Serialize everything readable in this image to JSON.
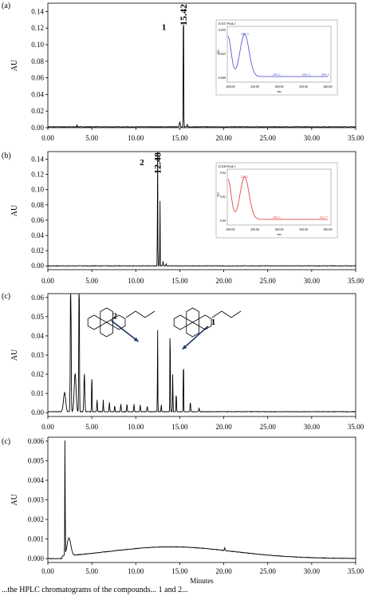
{
  "chart_data": [
    {
      "type": "line",
      "panel_label": "(a)",
      "ylabel": "AU",
      "xlabel": "",
      "xlim": [
        0,
        35
      ],
      "ylim": [
        0,
        0.15
      ],
      "x_ticks": [
        "0.00",
        "5.00",
        "10.00",
        "15.00",
        "20.00",
        "25.00",
        "30.00",
        "35.00"
      ],
      "y_ticks": [
        "0.00",
        "0.02",
        "0.04",
        "0.06",
        "0.08",
        "0.10",
        "0.12",
        "0.14"
      ],
      "y_tick_values": [
        0,
        0.02,
        0.04,
        0.06,
        0.08,
        0.1,
        0.12,
        0.14
      ],
      "line_color": "#000000",
      "baseline": 0.001,
      "peaks": [
        {
          "x": 3.3,
          "height": 0.003,
          "width": 0.05
        },
        {
          "x": 15.0,
          "height": 0.006,
          "width": 0.15
        },
        {
          "x": 15.42,
          "height": 0.165,
          "width": 0.07
        },
        {
          "x": 15.85,
          "height": 0.003,
          "width": 0.1
        }
      ],
      "peak_label": {
        "text": "15.42",
        "x": 15.42
      },
      "compound_label": {
        "text": "1",
        "x": 13.2,
        "y": 0.118
      },
      "inset": {
        "header": "15.011 Peak 1",
        "ylabel": "AU",
        "xlabel": "nm",
        "line_color": "#5a5ad0",
        "x_ticks": [
          "200.00",
          "250.00",
          "300.00",
          "350.00",
          "400.00"
        ],
        "y_ticks": [
          "0.000",
          "0.025",
          "0.050"
        ],
        "max_annotation": "229.3",
        "point_annotations": [
          "295.1",
          "355.3",
          "395.5"
        ]
      }
    },
    {
      "type": "line",
      "panel_label": "(b)",
      "ylabel": "AU",
      "xlabel": "",
      "xlim": [
        0,
        35
      ],
      "ylim": [
        -0.005,
        0.15
      ],
      "x_ticks": [
        "0.00",
        "5.00",
        "10.00",
        "15.00",
        "20.00",
        "25.00",
        "30.00",
        "35.00"
      ],
      "y_ticks": [
        "0.00",
        "0.02",
        "0.04",
        "0.06",
        "0.08",
        "0.10",
        "0.12",
        "0.14"
      ],
      "y_tick_values": [
        0,
        0.02,
        0.04,
        0.06,
        0.08,
        0.1,
        0.12,
        0.14
      ],
      "line_color": "#000000",
      "baseline": 0.0,
      "peaks": [
        {
          "x": 12.48,
          "height": 0.16,
          "width": 0.06
        },
        {
          "x": 12.75,
          "height": 0.09,
          "width": 0.05
        },
        {
          "x": 13.1,
          "height": 0.006,
          "width": 0.08
        },
        {
          "x": 13.45,
          "height": 0.003,
          "width": 0.08
        }
      ],
      "peak_label": {
        "text": "12.48",
        "x": 12.48
      },
      "compound_label": {
        "text": "2",
        "x": 10.7,
        "y": 0.132
      },
      "inset": {
        "header": "12.636 Peak 1",
        "ylabel": "AU",
        "xlabel": "nm",
        "line_color": "#e04a4a",
        "x_ticks": [
          "200.00",
          "250.00",
          "300.00",
          "350.00",
          "400.00"
        ],
        "y_ticks": [
          "0.00",
          "0.02",
          "0.04"
        ],
        "max_annotation": "229.1",
        "point_annotations": [
          "295.1",
          "391.7"
        ]
      }
    },
    {
      "type": "line",
      "panel_label": "(c)",
      "ylabel": "AU",
      "xlabel": "",
      "xlim": [
        0,
        35
      ],
      "ylim": [
        -0.002,
        0.062
      ],
      "x_ticks": [
        "0.00",
        "5.00",
        "10.00",
        "15.00",
        "20.00",
        "25.00",
        "30.00",
        "35.00"
      ],
      "y_ticks": [
        "0.00",
        "0.01",
        "0.02",
        "0.03",
        "0.04",
        "0.05",
        "0.06"
      ],
      "y_tick_values": [
        0,
        0.01,
        0.02,
        0.03,
        0.04,
        0.05,
        0.06
      ],
      "line_color": "#000000",
      "baseline": 0.0005,
      "peaks": [
        {
          "x": 1.9,
          "height": 0.01,
          "width": 0.35
        },
        {
          "x": 2.6,
          "height": 0.08,
          "width": 0.12
        },
        {
          "x": 3.1,
          "height": 0.02,
          "width": 0.3
        },
        {
          "x": 3.55,
          "height": 0.08,
          "width": 0.1
        },
        {
          "x": 4.15,
          "height": 0.02,
          "width": 0.15
        },
        {
          "x": 5.0,
          "height": 0.02,
          "width": 0.08
        },
        {
          "x": 5.6,
          "height": 0.006,
          "width": 0.1
        },
        {
          "x": 6.3,
          "height": 0.006,
          "width": 0.08
        },
        {
          "x": 7.0,
          "height": 0.005,
          "width": 0.1
        },
        {
          "x": 7.6,
          "height": 0.003,
          "width": 0.1
        },
        {
          "x": 8.3,
          "height": 0.004,
          "width": 0.1
        },
        {
          "x": 9.0,
          "height": 0.004,
          "width": 0.1
        },
        {
          "x": 9.8,
          "height": 0.004,
          "width": 0.1
        },
        {
          "x": 10.5,
          "height": 0.0035,
          "width": 0.1
        },
        {
          "x": 11.3,
          "height": 0.003,
          "width": 0.1
        },
        {
          "x": 12.48,
          "height": 0.043,
          "width": 0.06
        },
        {
          "x": 12.9,
          "height": 0.004,
          "width": 0.08
        },
        {
          "x": 13.9,
          "height": 0.048,
          "width": 0.07
        },
        {
          "x": 14.2,
          "height": 0.02,
          "width": 0.07
        },
        {
          "x": 14.6,
          "height": 0.01,
          "width": 0.08
        },
        {
          "x": 15.42,
          "height": 0.033,
          "width": 0.06
        },
        {
          "x": 16.2,
          "height": 0.005,
          "width": 0.1
        },
        {
          "x": 17.2,
          "height": 0.002,
          "width": 0.1
        }
      ],
      "arrows": [
        {
          "label": "2",
          "from": [
            7.2,
            0.048
          ],
          "to": [
            10.3,
            0.037
          ]
        },
        {
          "label": "1",
          "from": [
            18.2,
            0.045
          ],
          "to": [
            15.3,
            0.033
          ]
        }
      ]
    },
    {
      "type": "line",
      "panel_label": "(c)",
      "ylabel": "AU",
      "xlabel": "Minutes",
      "xlim": [
        0,
        35
      ],
      "ylim": [
        -0.0002,
        0.0062
      ],
      "x_ticks": [
        "0.00",
        "5.00",
        "10.00",
        "15.00",
        "20.00",
        "25.00",
        "30.00",
        "35.00"
      ],
      "y_ticks": [
        "0.000",
        "0.001",
        "0.002",
        "0.003",
        "0.004",
        "0.005",
        "0.006"
      ],
      "y_tick_values": [
        0,
        0.001,
        0.002,
        0.003,
        0.004,
        0.005,
        0.006
      ],
      "line_color": "#000000",
      "baseline": 0.0,
      "peaks": [
        {
          "x": 1.95,
          "height": 0.006,
          "width": 0.06
        },
        {
          "x": 2.4,
          "height": 0.0009,
          "width": 0.6
        },
        {
          "x": 20.1,
          "height": 0.00015,
          "width": 0.1
        }
      ],
      "hump": {
        "center": 14.0,
        "height": 0.0006,
        "width": 10.0
      }
    }
  ],
  "caption": "...the HPLC chromatograms of the compounds... 1 and 2..."
}
